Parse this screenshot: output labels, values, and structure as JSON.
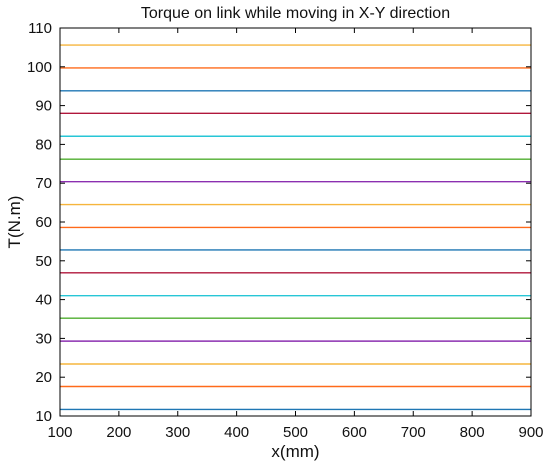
{
  "chart_data": {
    "type": "line",
    "title": "Torque on link while moving in X-Y direction",
    "xlabel": "x(mm)",
    "ylabel": "T(N.m)",
    "xlim": [
      100,
      900
    ],
    "ylim": [
      10,
      110
    ],
    "xticks": [
      100,
      200,
      300,
      400,
      500,
      600,
      700,
      800,
      900
    ],
    "yticks": [
      10,
      20,
      30,
      40,
      50,
      60,
      70,
      80,
      90,
      100,
      110
    ],
    "grid": false,
    "legend": "none",
    "series": [
      {
        "x": [
          100,
          900
        ],
        "y": [
          11.7,
          11.7
        ],
        "color": "#1f77b4"
      },
      {
        "x": [
          100,
          900
        ],
        "y": [
          17.6,
          17.6
        ],
        "color": "#ff6a1a"
      },
      {
        "x": [
          100,
          900
        ],
        "y": [
          23.4,
          23.4
        ],
        "color": "#f6b53d"
      },
      {
        "x": [
          100,
          900
        ],
        "y": [
          29.3,
          29.3
        ],
        "color": "#8b2fb0"
      },
      {
        "x": [
          100,
          900
        ],
        "y": [
          35.2,
          35.2
        ],
        "color": "#4fae2f"
      },
      {
        "x": [
          100,
          900
        ],
        "y": [
          41.0,
          41.0
        ],
        "color": "#27c6d6"
      },
      {
        "x": [
          100,
          900
        ],
        "y": [
          46.9,
          46.9
        ],
        "color": "#b0173c"
      },
      {
        "x": [
          100,
          900
        ],
        "y": [
          52.8,
          52.8
        ],
        "color": "#1f77b4"
      },
      {
        "x": [
          100,
          900
        ],
        "y": [
          58.6,
          58.6
        ],
        "color": "#ff6a1a"
      },
      {
        "x": [
          100,
          900
        ],
        "y": [
          64.5,
          64.5
        ],
        "color": "#f6b53d"
      },
      {
        "x": [
          100,
          900
        ],
        "y": [
          70.4,
          70.4
        ],
        "color": "#8b2fb0"
      },
      {
        "x": [
          100,
          900
        ],
        "y": [
          76.2,
          76.2
        ],
        "color": "#4fae2f"
      },
      {
        "x": [
          100,
          900
        ],
        "y": [
          82.1,
          82.1
        ],
        "color": "#27c6d6"
      },
      {
        "x": [
          100,
          900
        ],
        "y": [
          88.0,
          88.0
        ],
        "color": "#b0173c"
      },
      {
        "x": [
          100,
          900
        ],
        "y": [
          93.8,
          93.8
        ],
        "color": "#1f77b4"
      },
      {
        "x": [
          100,
          900
        ],
        "y": [
          99.7,
          99.7
        ],
        "color": "#ff6a1a"
      },
      {
        "x": [
          100,
          900
        ],
        "y": [
          105.6,
          105.6
        ],
        "color": "#f6b53d"
      }
    ]
  }
}
